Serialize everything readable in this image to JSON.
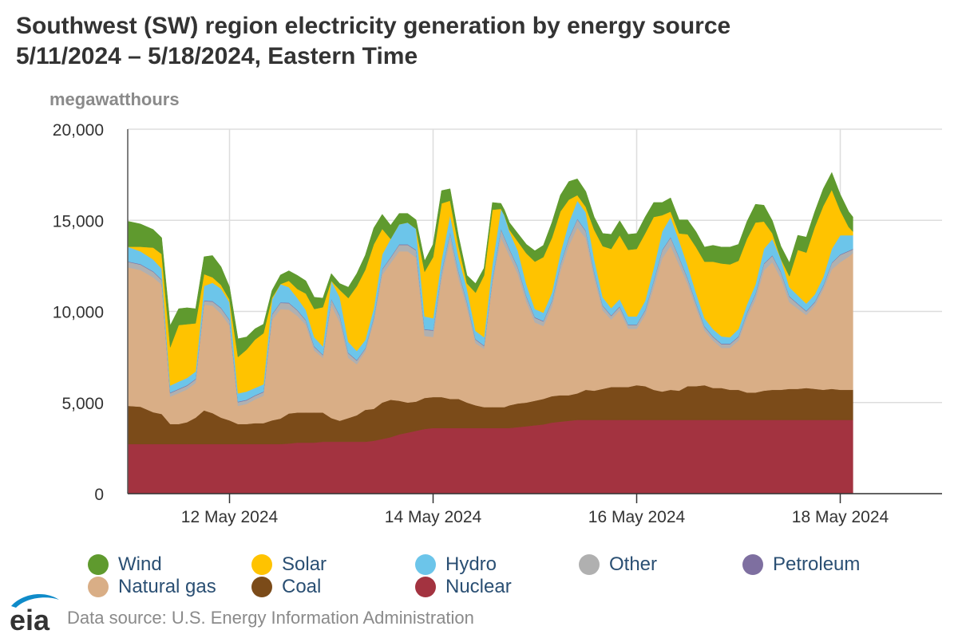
{
  "title_line1": "Southwest (SW) region electricity generation by energy source",
  "title_line2": "5/11/2024 – 5/18/2024, Eastern Time",
  "source": "Data source: U.S. Energy Information Administration",
  "logo_text": "eia",
  "chart_data": {
    "type": "area",
    "stacked": true,
    "ylabel": "megawatthours",
    "ylim": [
      0,
      20000
    ],
    "yticks": [
      0,
      5000,
      10000,
      15000,
      20000
    ],
    "ytick_labels": [
      "0",
      "5,000",
      "10,000",
      "15,000",
      "20,000"
    ],
    "xlim": [
      0,
      8
    ],
    "xticks": [
      1,
      3,
      5,
      7
    ],
    "xtick_labels": [
      "12 May 2024",
      "14 May 2024",
      "16 May 2024",
      "18 May 2024"
    ],
    "x_unit": "days since 5/11/2024 00:00",
    "grid": true,
    "legend_position": "bottom",
    "x": [
      0,
      0.125,
      0.25,
      0.333,
      0.417,
      0.5,
      0.583,
      0.667,
      0.75,
      0.833,
      0.917,
      1,
      1.083,
      1.167,
      1.25,
      1.333,
      1.417,
      1.5,
      1.583,
      1.667,
      1.75,
      1.833,
      1.917,
      2,
      2.083,
      2.167,
      2.25,
      2.333,
      2.417,
      2.5,
      2.583,
      2.667,
      2.75,
      2.833,
      2.917,
      3,
      3.083,
      3.167,
      3.25,
      3.333,
      3.417,
      3.5,
      3.583,
      3.667,
      3.7,
      3.75,
      3.833,
      3.917,
      4,
      4.083,
      4.167,
      4.25,
      4.333,
      4.417,
      4.5,
      4.583,
      4.667,
      4.75,
      4.833,
      4.917,
      5,
      5.083,
      5.167,
      5.25,
      5.333,
      5.417,
      5.5,
      5.583,
      5.667,
      5.75,
      5.833,
      5.917,
      6,
      6.083,
      6.167,
      6.25,
      6.333,
      6.417,
      6.5,
      6.583,
      6.667,
      6.75,
      6.833,
      6.917,
      7,
      7.083,
      7.125
    ],
    "series": [
      {
        "name": "Nuclear",
        "color": "#a33340",
        "values": [
          2720,
          2720,
          2720,
          2720,
          2720,
          2720,
          2720,
          2720,
          2720,
          2720,
          2720,
          2720,
          2720,
          2720,
          2720,
          2720,
          2720,
          2720,
          2750,
          2800,
          2800,
          2800,
          2850,
          2850,
          2850,
          2850,
          2850,
          2850,
          2900,
          3000,
          3100,
          3250,
          3350,
          3450,
          3550,
          3600,
          3600,
          3600,
          3600,
          3600,
          3600,
          3600,
          3600,
          3600,
          3600,
          3600,
          3650,
          3700,
          3750,
          3800,
          3900,
          3950,
          4000,
          4050,
          4050,
          4050,
          4050,
          4050,
          4050,
          4050,
          4050,
          4050,
          4050,
          4050,
          4050,
          4050,
          4050,
          4050,
          4050,
          4050,
          4050,
          4050,
          4050,
          4050,
          4050,
          4050,
          4050,
          4050,
          4050,
          4050,
          4050,
          4050,
          4050,
          4050,
          4050,
          4050,
          4050
        ]
      },
      {
        "name": "Coal",
        "color": "#7b4b19",
        "values": [
          2100,
          2050,
          1750,
          1650,
          1100,
          1100,
          1200,
          1450,
          1850,
          1700,
          1450,
          1300,
          1100,
          1100,
          1150,
          1150,
          1300,
          1400,
          1650,
          1650,
          1650,
          1650,
          1600,
          1300,
          1150,
          1300,
          1450,
          1750,
          1750,
          2000,
          2050,
          1850,
          1650,
          1600,
          1700,
          1700,
          1700,
          1600,
          1600,
          1400,
          1250,
          1150,
          1150,
          1150,
          1150,
          1250,
          1300,
          1300,
          1350,
          1400,
          1450,
          1450,
          1400,
          1450,
          1650,
          1600,
          1700,
          1800,
          1800,
          1800,
          1900,
          1850,
          1650,
          1550,
          1650,
          1600,
          1850,
          1850,
          1900,
          1750,
          1750,
          1650,
          1650,
          1500,
          1500,
          1600,
          1650,
          1650,
          1700,
          1700,
          1750,
          1700,
          1650,
          1700,
          1650,
          1650,
          1650
        ]
      },
      {
        "name": "Natural gas",
        "color": "#d9ae86",
        "values": [
          7600,
          7500,
          7400,
          7100,
          1500,
          1700,
          1800,
          1900,
          5800,
          5900,
          5700,
          5200,
          1000,
          1100,
          1300,
          1500,
          5500,
          6000,
          5700,
          5300,
          4800,
          3400,
          3000,
          6200,
          5400,
          3300,
          2800,
          3200,
          4800,
          7000,
          7500,
          8200,
          8300,
          7900,
          3400,
          3300,
          6500,
          8700,
          6600,
          5200,
          3400,
          3200,
          6800,
          9300,
          8900,
          8200,
          7100,
          5500,
          4300,
          4000,
          4900,
          6800,
          8200,
          9100,
          8300,
          6200,
          4300,
          3700,
          4200,
          3200,
          3100,
          3900,
          5600,
          7300,
          7900,
          6900,
          5600,
          4300,
          3000,
          2600,
          2200,
          2300,
          2700,
          4100,
          5100,
          6600,
          7000,
          6100,
          4750,
          4400,
          4000,
          4550,
          5500,
          6550,
          7000,
          7300,
          7500
        ]
      },
      {
        "name": "Other",
        "color": "#b0b0b0",
        "values": [
          300,
          300,
          300,
          250,
          200,
          200,
          200,
          200,
          200,
          220,
          300,
          300,
          200,
          200,
          200,
          200,
          300,
          350,
          350,
          300,
          250,
          200,
          150,
          300,
          350,
          250,
          200,
          150,
          200,
          300,
          300,
          350,
          350,
          400,
          350,
          350,
          350,
          400,
          350,
          300,
          200,
          150,
          200,
          450,
          400,
          350,
          350,
          300,
          250,
          250,
          300,
          350,
          400,
          450,
          400,
          300,
          250,
          200,
          200,
          200,
          200,
          250,
          350,
          450,
          450,
          400,
          300,
          250,
          200,
          200,
          200,
          200,
          200,
          250,
          300,
          350,
          350,
          350,
          300,
          250,
          200,
          200,
          200,
          350,
          400,
          300,
          200
        ]
      },
      {
        "name": "Petroleum",
        "color": "#7e6fa0",
        "values": [
          30,
          30,
          30,
          30,
          30,
          30,
          30,
          30,
          30,
          30,
          30,
          30,
          30,
          30,
          30,
          30,
          30,
          30,
          30,
          30,
          30,
          30,
          30,
          30,
          30,
          30,
          30,
          30,
          30,
          30,
          30,
          30,
          30,
          30,
          30,
          30,
          30,
          30,
          30,
          30,
          30,
          30,
          30,
          30,
          30,
          30,
          30,
          30,
          30,
          30,
          30,
          30,
          30,
          30,
          30,
          30,
          30,
          30,
          30,
          30,
          30,
          30,
          30,
          30,
          30,
          30,
          30,
          30,
          30,
          30,
          30,
          30,
          30,
          30,
          30,
          30,
          30,
          30,
          30,
          30,
          30,
          30,
          30,
          30,
          30,
          30,
          30
        ]
      },
      {
        "name": "Hydro",
        "color": "#6cc5ea",
        "values": [
          800,
          700,
          650,
          600,
          380,
          400,
          400,
          400,
          800,
          1000,
          1050,
          950,
          450,
          450,
          400,
          400,
          800,
          1000,
          850,
          650,
          550,
          500,
          450,
          1000,
          1000,
          600,
          500,
          450,
          500,
          800,
          1000,
          1100,
          1200,
          1150,
          700,
          650,
          650,
          950,
          800,
          700,
          450,
          450,
          800,
          1100,
          1200,
          950,
          900,
          650,
          450,
          450,
          450,
          600,
          850,
          1000,
          1000,
          700,
          450,
          400,
          400,
          450,
          450,
          500,
          700,
          1000,
          1100,
          900,
          700,
          550,
          450,
          400,
          400,
          350,
          400,
          450,
          500,
          800,
          900,
          700,
          500,
          450,
          400,
          400,
          450,
          750,
          1050,
          850,
          750
        ]
      },
      {
        "name": "Solar",
        "color": "#ffc300",
        "values": [
          0,
          250,
          650,
          800,
          2100,
          3100,
          2950,
          2650,
          650,
          300,
          200,
          150,
          2000,
          2300,
          2650,
          2800,
          100,
          0,
          350,
          500,
          900,
          1550,
          2150,
          0,
          400,
          2400,
          3550,
          3850,
          3500,
          1400,
          0,
          0,
          0,
          0,
          2450,
          3350,
          3100,
          800,
          600,
          300,
          2100,
          3400,
          3000,
          0,
          0,
          100,
          500,
          1700,
          2600,
          3050,
          3000,
          2300,
          1250,
          300,
          300,
          1600,
          2800,
          3250,
          3500,
          3650,
          3700,
          3700,
          2800,
          900,
          300,
          400,
          1700,
          2500,
          3100,
          3700,
          4000,
          4000,
          3750,
          3600,
          3400,
          1500,
          300,
          0,
          600,
          2500,
          2800,
          3700,
          3900,
          3250,
          1350,
          450,
          200
        ]
      },
      {
        "name": "Wind",
        "color": "#5f9a2e",
        "values": [
          1400,
          1250,
          1000,
          900,
          1200,
          900,
          900,
          800,
          950,
          1200,
          1000,
          700,
          1000,
          700,
          600,
          500,
          400,
          500,
          550,
          750,
          700,
          650,
          500,
          400,
          350,
          600,
          700,
          800,
          900,
          800,
          750,
          600,
          500,
          500,
          600,
          700,
          700,
          650,
          550,
          450,
          500,
          400,
          400,
          300,
          300,
          400,
          450,
          500,
          600,
          650,
          850,
          900,
          1000,
          900,
          850,
          700,
          700,
          800,
          800,
          850,
          850,
          900,
          800,
          700,
          750,
          750,
          800,
          850,
          800,
          900,
          900,
          950,
          900,
          950,
          1000,
          900,
          700,
          700,
          750,
          800,
          850,
          850,
          950,
          950,
          900,
          850,
          800
        ]
      }
    ]
  },
  "legend": [
    {
      "label": "Wind",
      "color": "#5f9a2e"
    },
    {
      "label": "Solar",
      "color": "#ffc300"
    },
    {
      "label": "Hydro",
      "color": "#6cc5ea"
    },
    {
      "label": "Other",
      "color": "#b0b0b0"
    },
    {
      "label": "Petroleum",
      "color": "#7e6fa0"
    },
    {
      "label": "Natural gas",
      "color": "#d9ae86"
    },
    {
      "label": "Coal",
      "color": "#7b4b19"
    },
    {
      "label": "Nuclear",
      "color": "#a33340"
    }
  ]
}
